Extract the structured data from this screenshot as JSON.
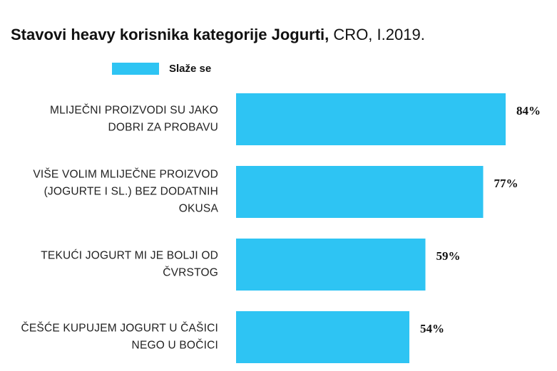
{
  "chart_data": {
    "type": "bar",
    "orientation": "horizontal",
    "title": "Stavovi heavy korisnika kategorije Jogurti,",
    "subtitle": "CRO, I.2019.",
    "categories": [
      [
        "MLIJEČNI PROIZVODI SU JAKO",
        "DOBRI ZA PROBAVU"
      ],
      [
        "VIŠE VOLIM MLIJEČNE PROIZVOD",
        "(JOGURTE I SL.) BEZ DODATNIH",
        "OKUSA"
      ],
      [
        "TEKUĆI JOGURT MI JE BOLJI OD",
        "ČVRSTOG"
      ],
      [
        "ČEŠĆE KUPUJEM JOGURT U ČAŠICI",
        "NEGO U BOČICI"
      ]
    ],
    "series": [
      {
        "name": "Slaže se",
        "values": [
          84,
          77,
          59,
          54
        ],
        "color": "#2EC4F3"
      }
    ],
    "value_labels": [
      "84%",
      "77%",
      "59%",
      "54%"
    ],
    "xlim": [
      0,
      100
    ],
    "grid": false,
    "legend_position": "top-left"
  }
}
